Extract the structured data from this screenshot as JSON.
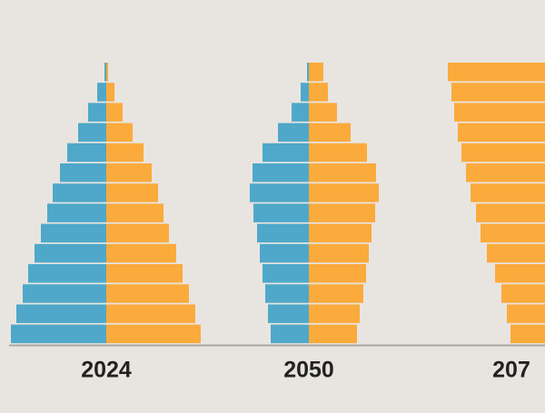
{
  "chart_data": [
    {
      "type": "pyramid",
      "title": "2024",
      "series": [
        {
          "color": "#4fa8c9",
          "values": [
            2,
            10,
            20,
            31,
            43,
            51,
            59,
            65,
            72,
            79,
            86,
            92,
            99,
            105
          ]
        },
        {
          "color": "#fbaa3c",
          "values": [
            2,
            9,
            18,
            29,
            41,
            50,
            57,
            63,
            69,
            77,
            84,
            91,
            98,
            104
          ]
        }
      ]
    },
    {
      "type": "pyramid",
      "title": "2050",
      "series": [
        {
          "color": "#4fa8c9",
          "values": [
            2,
            9,
            19,
            34,
            51,
            62,
            65,
            61,
            57,
            54,
            51,
            48,
            45,
            42
          ]
        },
        {
          "color": "#fbaa3c",
          "values": [
            16,
            21,
            31,
            46,
            64,
            74,
            77,
            73,
            69,
            66,
            63,
            60,
            56,
            53
          ]
        }
      ]
    },
    {
      "type": "pyramid",
      "title": "207",
      "series": [
        {
          "color": "#fbaa3c",
          "values": [
            147,
            143,
            140,
            136,
            132,
            127,
            122,
            116,
            111,
            104,
            95,
            88,
            82,
            78
          ]
        }
      ]
    }
  ]
}
